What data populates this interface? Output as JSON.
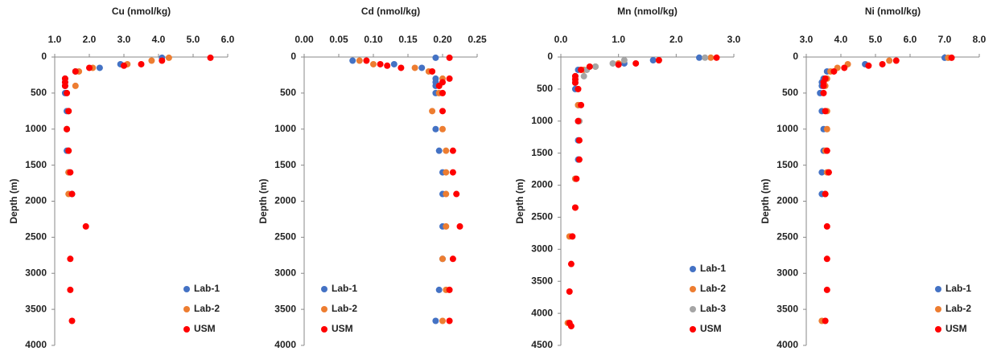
{
  "chart_data": [
    {
      "type": "scatter",
      "title": "Cu (nmol/kg)",
      "y_label": "Depth (m)",
      "x_axis_position": "top",
      "invert_y": true,
      "legend": "bottom-right",
      "xlim": [
        1.0,
        6.0
      ],
      "xticks": [
        {
          "value": 1.0,
          "label": "1.0"
        },
        {
          "value": 2.0,
          "label": "2.0"
        },
        {
          "value": 3.0,
          "label": "3.0"
        },
        {
          "value": 4.0,
          "label": "4.0"
        },
        {
          "value": 5.0,
          "label": "5.0"
        },
        {
          "value": 6.0,
          "label": "6.0"
        }
      ],
      "ylim": [
        0,
        4000
      ],
      "yticks": [
        0,
        500,
        1000,
        1500,
        2000,
        2500,
        3000,
        3500,
        4000
      ],
      "series": [
        {
          "name": "Lab-1",
          "color": "#4472c4",
          "x": [
            4.1,
            2.9,
            2.3,
            1.6,
            1.3,
            1.3,
            1.3,
            1.3,
            1.35,
            1.35,
            1.35,
            1.4,
            1.5
          ],
          "values": [
            10,
            100,
            150,
            200,
            300,
            350,
            400,
            500,
            750,
            1000,
            1300,
            1600,
            1900
          ]
        },
        {
          "name": "Lab-2",
          "color": "#ed7d31",
          "x": [
            4.3,
            3.8,
            3.1,
            2.1,
            1.7,
            1.6,
            1.4,
            1.35,
            1.4,
            1.4,
            1.4
          ],
          "values": [
            10,
            50,
            100,
            150,
            200,
            400,
            750,
            1000,
            1300,
            1600,
            1900
          ]
        },
        {
          "name": "USM",
          "color": "#ff0000",
          "x": [
            5.5,
            4.1,
            3.5,
            3.0,
            2.0,
            1.6,
            1.3,
            1.3,
            1.3,
            1.35,
            1.4,
            1.35,
            1.4,
            1.45,
            1.5,
            1.9,
            1.45,
            1.45,
            1.5
          ],
          "values": [
            10,
            50,
            100,
            120,
            150,
            200,
            300,
            350,
            400,
            500,
            750,
            1000,
            1300,
            1600,
            1900,
            2350,
            2800,
            3230,
            3660
          ]
        }
      ]
    },
    {
      "type": "scatter",
      "title": "Cd (nmol/kg)",
      "y_label": "Depth (m)",
      "x_axis_position": "top",
      "invert_y": true,
      "legend": "bottom-left",
      "xlim": [
        0,
        0.25
      ],
      "xticks": [
        {
          "value": 0,
          "label": "0.00"
        },
        {
          "value": 0.05,
          "label": "0.05"
        },
        {
          "value": 0.1,
          "label": "0.10"
        },
        {
          "value": 0.15,
          "label": "0.15"
        },
        {
          "value": 0.2,
          "label": "0.20"
        },
        {
          "value": 0.25,
          "label": "0.25"
        }
      ],
      "ylim": [
        0,
        4000
      ],
      "yticks": [
        0,
        500,
        1000,
        1500,
        2000,
        2500,
        3000,
        3500,
        4000
      ],
      "series": [
        {
          "name": "Lab-1",
          "color": "#4472c4",
          "x": [
            0.19,
            0.07,
            0.13,
            0.17,
            0.19,
            0.19,
            0.19,
            0.19,
            0.19,
            0.195,
            0.2,
            0.2,
            0.2,
            0.2,
            0.195,
            0.19
          ],
          "values": [
            10,
            50,
            100,
            150,
            300,
            350,
            400,
            500,
            1000,
            1300,
            1600,
            1900,
            2350,
            2800,
            3230,
            3660
          ]
        },
        {
          "name": "Lab-2",
          "color": "#ed7d31",
          "x": [
            0.08,
            0.1,
            0.16,
            0.18,
            0.2,
            0.195,
            0.195,
            0.185,
            0.2,
            0.205,
            0.205,
            0.205,
            0.205,
            0.2,
            0.205,
            0.2
          ],
          "values": [
            50,
            100,
            150,
            200,
            300,
            400,
            500,
            750,
            1000,
            1300,
            1600,
            1900,
            2350,
            2800,
            3230,
            3660
          ]
        },
        {
          "name": "USM",
          "color": "#ff0000",
          "x": [
            0.21,
            0.09,
            0.11,
            0.12,
            0.14,
            0.185,
            0.21,
            0.2,
            0.195,
            0.2,
            0.2,
            0.215,
            0.215,
            0.22,
            0.225,
            0.215,
            0.21,
            0.21
          ],
          "values": [
            10,
            50,
            100,
            120,
            150,
            200,
            300,
            350,
            400,
            500,
            750,
            1300,
            1600,
            1900,
            2350,
            2800,
            3230,
            3660
          ]
        }
      ]
    },
    {
      "type": "scatter",
      "title": "Mn (nmol/kg)",
      "y_label": "Depth (m)",
      "x_axis_position": "top",
      "invert_y": true,
      "legend": "bottom-right",
      "xlim": [
        0,
        3.0
      ],
      "xticks": [
        {
          "value": 0,
          "label": "0.0"
        },
        {
          "value": 1.0,
          "label": "1.0"
        },
        {
          "value": 2.0,
          "label": "2.0"
        },
        {
          "value": 3.0,
          "label": "3.0"
        }
      ],
      "ylim": [
        0,
        4500
      ],
      "yticks": [
        0,
        500,
        1000,
        1500,
        2000,
        2500,
        3000,
        3500,
        4000,
        4500
      ],
      "series": [
        {
          "name": "Lab-1",
          "color": "#4472c4",
          "x": [
            2.4,
            1.6,
            1.1,
            0.3,
            0.25,
            0.25,
            0.25,
            0.25,
            0.3,
            0.3,
            0.3,
            0.3,
            0.25
          ],
          "values": [
            10,
            50,
            100,
            200,
            300,
            350,
            400,
            500,
            750,
            1000,
            1300,
            1600,
            1900
          ]
        },
        {
          "name": "Lab-2",
          "color": "#ed7d31",
          "x": [
            2.6,
            1.7,
            1.0,
            0.6,
            0.4,
            0.3,
            0.32,
            0.25,
            0.25,
            0.15,
            0.12
          ],
          "values": [
            10,
            50,
            100,
            150,
            200,
            750,
            1000,
            1900,
            2350,
            2800,
            4150
          ]
        },
        {
          "name": "Lab-3",
          "color": "#a5a5a5",
          "x": [
            2.5,
            1.1,
            0.9,
            0.6,
            0.45,
            0.4,
            0.32
          ],
          "values": [
            10,
            50,
            100,
            150,
            200,
            300,
            1000
          ]
        },
        {
          "name": "USM",
          "color": "#ff0000",
          "x": [
            2.7,
            1.7,
            1.3,
            1.0,
            0.5,
            0.35,
            0.25,
            0.25,
            0.25,
            0.3,
            0.35,
            0.3,
            0.32,
            0.32,
            0.27,
            0.25,
            0.2,
            0.18,
            0.15,
            0.15,
            0.18
          ],
          "values": [
            10,
            50,
            100,
            120,
            150,
            200,
            300,
            350,
            400,
            500,
            750,
            1000,
            1300,
            1600,
            1900,
            2350,
            2800,
            3230,
            3660,
            4150,
            4200
          ]
        }
      ]
    },
    {
      "type": "scatter",
      "title": "Ni (nmol/kg)",
      "y_label": "Depth (m)",
      "x_axis_position": "top",
      "invert_y": true,
      "legend": "bottom-right",
      "xlim": [
        3.0,
        8.0
      ],
      "xticks": [
        {
          "value": 3.0,
          "label": "3.0"
        },
        {
          "value": 4.0,
          "label": "4.0"
        },
        {
          "value": 5.0,
          "label": "5.0"
        },
        {
          "value": 6.0,
          "label": "6.0"
        },
        {
          "value": 7.0,
          "label": "7.0"
        },
        {
          "value": 8.0,
          "label": "8.0"
        }
      ],
      "ylim": [
        0,
        4000
      ],
      "yticks": [
        0,
        500,
        1000,
        1500,
        2000,
        2500,
        3000,
        3500,
        4000
      ],
      "series": [
        {
          "name": "Lab-1",
          "color": "#4472c4",
          "x": [
            7.0,
            4.7,
            3.6,
            3.5,
            3.45,
            3.45,
            3.4,
            3.45,
            3.5,
            3.5,
            3.45,
            3.45
          ],
          "values": [
            10,
            100,
            200,
            300,
            350,
            400,
            500,
            750,
            1000,
            1300,
            1600,
            1900
          ]
        },
        {
          "name": "Lab-2",
          "color": "#ed7d31",
          "x": [
            7.1,
            5.4,
            4.2,
            3.9,
            3.7,
            3.6,
            3.55,
            3.6,
            3.6,
            3.55,
            3.6,
            3.55,
            3.45
          ],
          "values": [
            10,
            50,
            100,
            150,
            200,
            300,
            400,
            750,
            1000,
            1300,
            1600,
            1900,
            3660
          ]
        },
        {
          "name": "USM",
          "color": "#ff0000",
          "x": [
            7.2,
            5.6,
            5.2,
            4.8,
            4.1,
            3.8,
            3.55,
            3.5,
            3.5,
            3.5,
            3.55,
            3.6,
            3.65,
            3.55,
            3.6,
            3.6,
            3.6,
            3.55
          ],
          "values": [
            10,
            50,
            100,
            120,
            150,
            200,
            300,
            350,
            400,
            500,
            750,
            1300,
            1600,
            1900,
            2350,
            2800,
            3230,
            3660
          ]
        }
      ]
    }
  ]
}
